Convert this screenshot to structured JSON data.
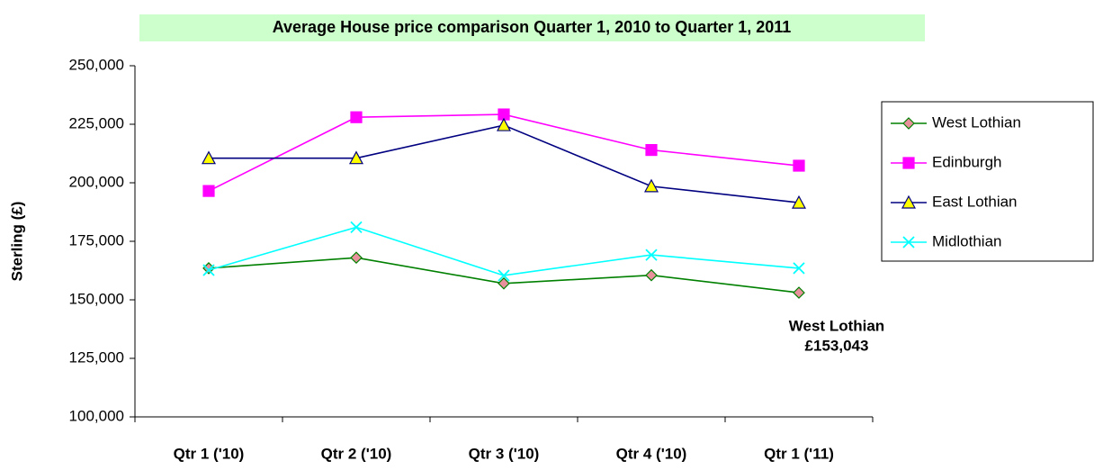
{
  "chart_data": {
    "type": "line",
    "title": "Average House price comparison Quarter 1, 2010 to Quarter 1, 2011",
    "y_label": "Sterling (£)",
    "categories": [
      "Qtr 1 ('10)",
      "Qtr 2 ('10)",
      "Qtr 3 ('10)",
      "Qtr 4 ('10)",
      "Qtr 1 ('11)"
    ],
    "series": [
      {
        "name": "West Lothian",
        "color": "#008000",
        "marker": "diamond",
        "marker_fill": "#e8909c",
        "values": [
          163500,
          168000,
          157000,
          160500,
          153043
        ]
      },
      {
        "name": "Edinburgh",
        "color": "#ff00ff",
        "marker": "square",
        "marker_fill": "#ff00ff",
        "values": [
          196500,
          228000,
          229200,
          214000,
          207300
        ]
      },
      {
        "name": "East Lothian",
        "color": "#000080",
        "marker": "triangle",
        "marker_fill": "#ffff00",
        "values": [
          210500,
          210500,
          224600,
          198500,
          191500
        ]
      },
      {
        "name": "Midlothian",
        "color": "#00ffff",
        "marker": "x",
        "marker_fill": "#00ffff",
        "values": [
          162700,
          181000,
          160400,
          169200,
          163500
        ]
      }
    ],
    "ylim": [
      100000,
      250000
    ],
    "yticks": [
      {
        "value": 100000,
        "label": "100,000"
      },
      {
        "value": 125000,
        "label": "125,000"
      },
      {
        "value": 150000,
        "label": "150,000"
      },
      {
        "value": 175000,
        "label": "175,000"
      },
      {
        "value": 200000,
        "label": "200,000"
      },
      {
        "value": 225000,
        "label": "225,000"
      },
      {
        "value": 250000,
        "label": "250,000"
      }
    ],
    "annotation": [
      "West Lothian",
      "£153,043"
    ],
    "title_background": "#ccffcc",
    "legend": "right"
  }
}
